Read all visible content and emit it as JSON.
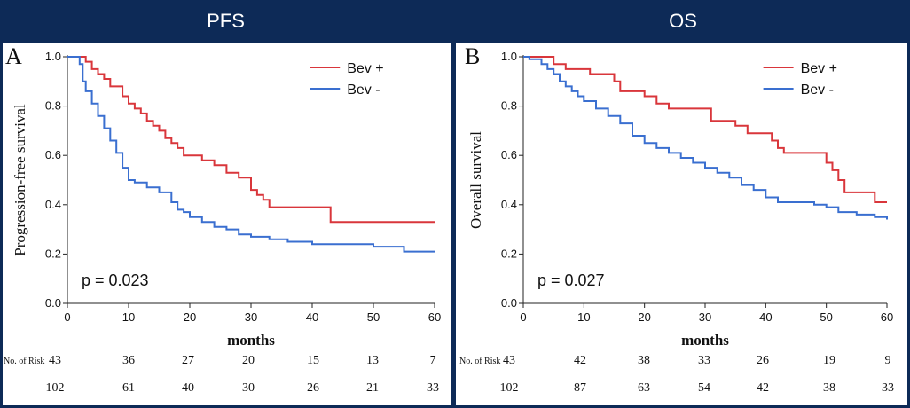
{
  "headers": {
    "left": "PFS",
    "right": "OS"
  },
  "colors": {
    "bev_plus": "#d9363b",
    "bev_minus": "#3a6fd0",
    "navy": "#0d2a57"
  },
  "chart_data": [
    {
      "type": "line",
      "panel_letter": "A",
      "header": "PFS",
      "ylabel": "Progression-free survival",
      "xlabel": "months",
      "xlim": [
        0,
        60
      ],
      "ylim": [
        0,
        1.0
      ],
      "xticks": [
        0,
        10,
        20,
        30,
        40,
        50,
        60
      ],
      "yticks": [
        "0.0",
        "0.2",
        "0.4",
        "0.6",
        "0.8",
        "1.0"
      ],
      "legend": [
        "Bev +",
        "Bev -"
      ],
      "annotation": "p = 0.023",
      "risk_label": "No. of Risk",
      "risk_rows": [
        [
          "43",
          "36",
          "27",
          "20",
          "15",
          "13",
          "7"
        ],
        [
          "102",
          "61",
          "40",
          "30",
          "26",
          "21",
          "33"
        ]
      ],
      "series": [
        {
          "name": "Bev +",
          "x": [
            0,
            3,
            4,
            5,
            6,
            7,
            9,
            10,
            11,
            12,
            13,
            14,
            15,
            16,
            17,
            18,
            19,
            20,
            22,
            24,
            26,
            28,
            30,
            31,
            32,
            33,
            36,
            43,
            60
          ],
          "y": [
            1.0,
            0.98,
            0.95,
            0.93,
            0.91,
            0.88,
            0.84,
            0.81,
            0.79,
            0.77,
            0.74,
            0.72,
            0.7,
            0.67,
            0.65,
            0.63,
            0.6,
            0.6,
            0.58,
            0.56,
            0.53,
            0.51,
            0.46,
            0.44,
            0.42,
            0.39,
            0.39,
            0.33,
            0.33
          ]
        },
        {
          "name": "Bev -",
          "x": [
            0,
            2,
            2.5,
            3,
            4,
            5,
            6,
            7,
            8,
            9,
            10,
            11,
            13,
            15,
            17,
            18,
            19,
            20,
            22,
            24,
            26,
            28,
            30,
            33,
            36,
            40,
            50,
            55,
            60
          ],
          "y": [
            1.0,
            0.97,
            0.9,
            0.86,
            0.81,
            0.76,
            0.71,
            0.66,
            0.61,
            0.55,
            0.5,
            0.49,
            0.47,
            0.45,
            0.41,
            0.38,
            0.37,
            0.35,
            0.33,
            0.31,
            0.3,
            0.28,
            0.27,
            0.26,
            0.25,
            0.24,
            0.23,
            0.21,
            0.21
          ]
        }
      ]
    },
    {
      "type": "line",
      "panel_letter": "B",
      "header": "OS",
      "ylabel": "Overall survival",
      "xlabel": "months",
      "xlim": [
        0,
        60
      ],
      "ylim": [
        0,
        1.0
      ],
      "xticks": [
        0,
        10,
        20,
        30,
        40,
        50,
        60
      ],
      "yticks": [
        "0.0",
        "0.2",
        "0.4",
        "0.6",
        "0.8",
        "1.0"
      ],
      "legend": [
        "Bev +",
        "Bev -"
      ],
      "annotation": "p = 0.027",
      "risk_label": "No. of Risk",
      "risk_rows": [
        [
          "43",
          "42",
          "38",
          "33",
          "26",
          "19",
          "9"
        ],
        [
          "102",
          "87",
          "63",
          "54",
          "42",
          "38",
          "33"
        ]
      ],
      "series": [
        {
          "name": "Bev +",
          "x": [
            0,
            5,
            7,
            11,
            15,
            16,
            20,
            22,
            23,
            24,
            26,
            28,
            31,
            34,
            35,
            37,
            40,
            41,
            42,
            43,
            44,
            50,
            51,
            52,
            53,
            57,
            58,
            60
          ],
          "y": [
            1.0,
            0.97,
            0.95,
            0.93,
            0.9,
            0.86,
            0.84,
            0.81,
            0.81,
            0.79,
            0.79,
            0.79,
            0.74,
            0.74,
            0.72,
            0.69,
            0.69,
            0.66,
            0.63,
            0.61,
            0.61,
            0.57,
            0.54,
            0.5,
            0.45,
            0.45,
            0.41,
            0.41
          ]
        },
        {
          "name": "Bev -",
          "x": [
            0,
            1,
            3,
            4,
            5,
            6,
            7,
            8,
            9,
            10,
            12,
            14,
            16,
            18,
            20,
            22,
            24,
            26,
            28,
            30,
            32,
            34,
            36,
            38,
            40,
            42,
            45,
            48,
            50,
            52,
            55,
            58,
            60
          ],
          "y": [
            1.0,
            0.99,
            0.97,
            0.95,
            0.93,
            0.9,
            0.88,
            0.86,
            0.84,
            0.82,
            0.79,
            0.76,
            0.73,
            0.68,
            0.65,
            0.63,
            0.61,
            0.59,
            0.57,
            0.55,
            0.53,
            0.51,
            0.48,
            0.46,
            0.43,
            0.41,
            0.41,
            0.4,
            0.39,
            0.37,
            0.36,
            0.35,
            0.34
          ]
        }
      ]
    }
  ]
}
